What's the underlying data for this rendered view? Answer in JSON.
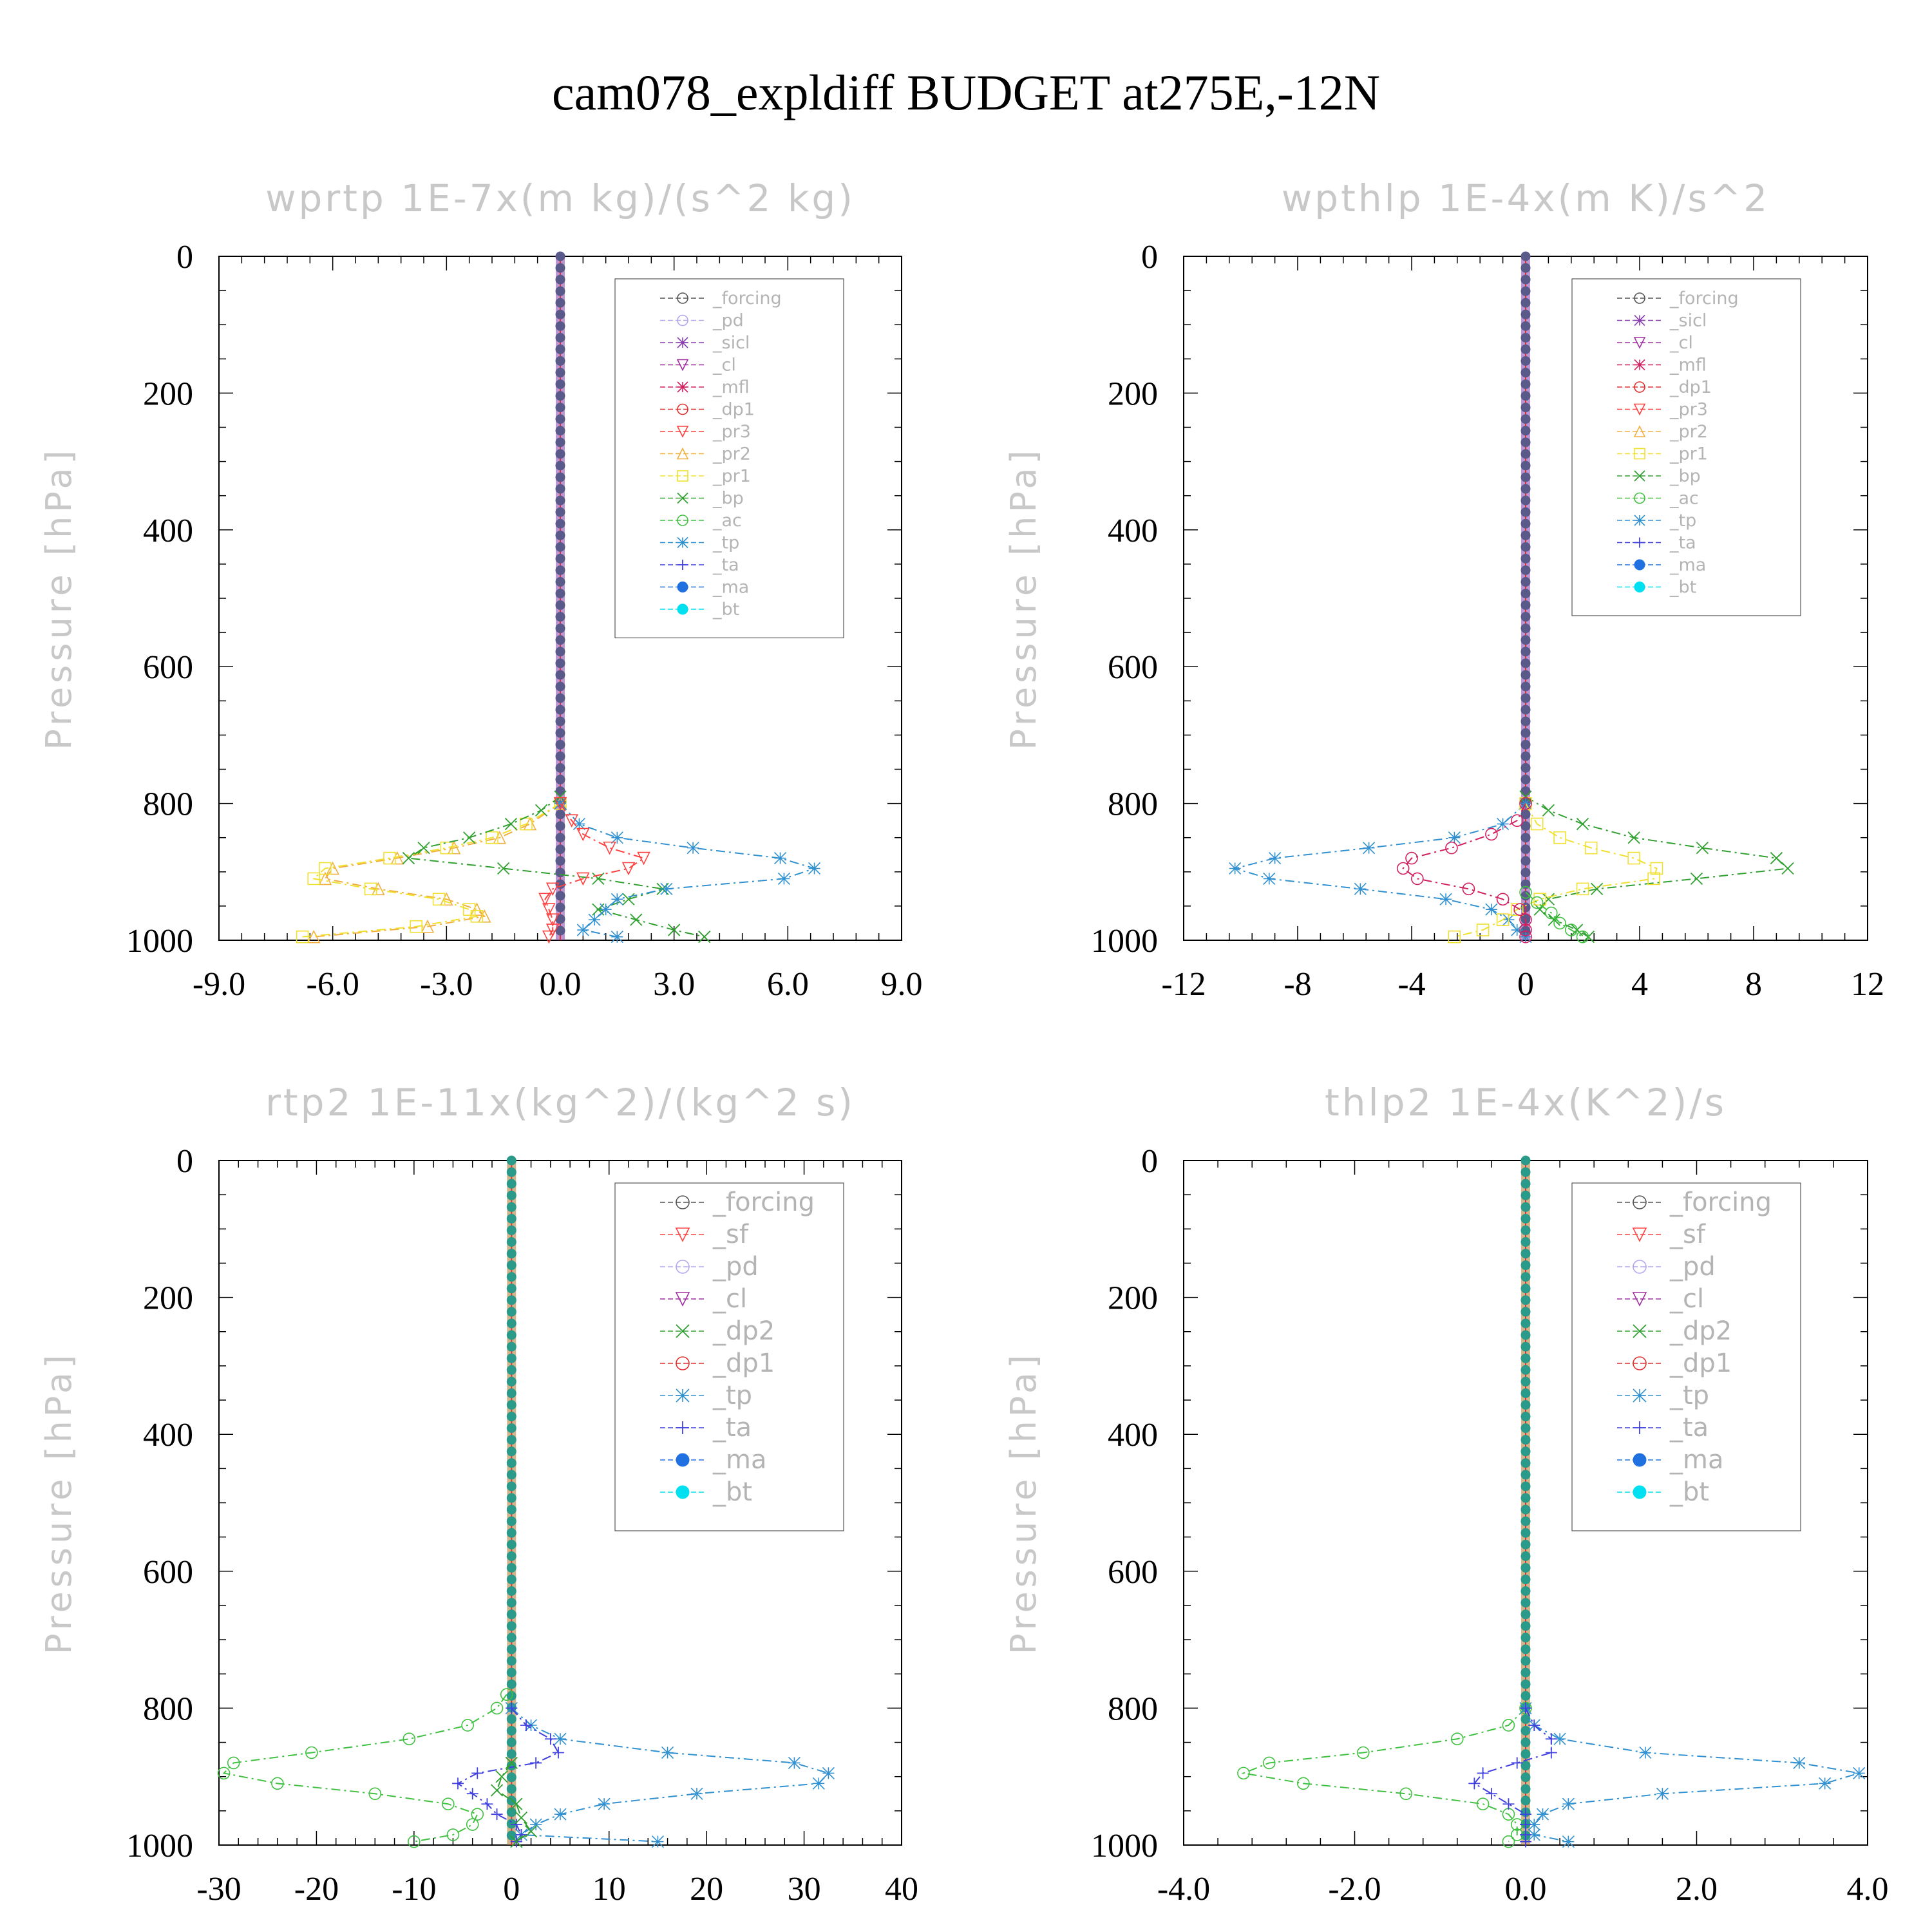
{
  "title": "cam078_expldiff  BUDGET at275E,-12N",
  "colors": {
    "forcing": "#555555",
    "pd": "#b0a8f0",
    "sicl": "#8a3fb0",
    "cl": "#a030a0",
    "mfl": "#d02060",
    "dp1": "#e03030",
    "pr3": "#ff4040",
    "pr2": "#f0b040",
    "pr1": "#f0e030",
    "bp": "#30a030",
    "ac": "#40c040",
    "tp": "#3090d0",
    "ta": "#4040e0",
    "ma": "#2070e0",
    "bt": "#00e0f0"
  },
  "chart_data": [
    {
      "type": "line",
      "title": "wprtp  1E-7x(m kg)/(s^2 kg)",
      "ylabel": "Pressure [hPa]",
      "xlim": [
        -9,
        9
      ],
      "ylim": [
        1000,
        0
      ],
      "xticks": [
        "-9.0",
        "-6.0",
        "-3.0",
        "0.0",
        "3.0",
        "6.0",
        "9.0"
      ],
      "yticks": [
        "0",
        "200",
        "400",
        "600",
        "800",
        "1000"
      ],
      "legend": [
        "_forcing",
        "_pd",
        "_sicl",
        "_cl",
        "_mfl",
        "_dp1",
        "_pr3",
        "_pr2",
        "_pr1",
        "_bp",
        "_ac",
        "_tp",
        "_ta",
        "_ma",
        "_bt"
      ],
      "series": [
        {
          "name": "_pr2",
          "color": "#f0b040",
          "marker": "triangle",
          "p": [
            800,
            830,
            850,
            865,
            880,
            895,
            910,
            925,
            940,
            955,
            965,
            980,
            995
          ],
          "v": [
            0,
            -0.8,
            -1.6,
            -2.8,
            -4.3,
            -6.0,
            -6.2,
            -4.8,
            -3.0,
            -2.2,
            -2.0,
            -3.5,
            -6.5
          ]
        },
        {
          "name": "_pr1",
          "color": "#f0e030",
          "marker": "square",
          "p": [
            800,
            830,
            850,
            865,
            880,
            895,
            910,
            925,
            940,
            955,
            965,
            980,
            995
          ],
          "v": [
            0,
            -0.9,
            -1.8,
            -3.0,
            -4.5,
            -6.2,
            -6.5,
            -5.0,
            -3.2,
            -2.4,
            -2.2,
            -3.8,
            -6.8
          ]
        },
        {
          "name": "_bp",
          "color": "#30a030",
          "marker": "x",
          "p": [
            790,
            810,
            830,
            850,
            865,
            880,
            895,
            910,
            925,
            940,
            955,
            970,
            985,
            995
          ],
          "v": [
            0,
            -0.5,
            -1.3,
            -2.4,
            -3.6,
            -4.0,
            -1.5,
            1.0,
            2.7,
            1.8,
            1.0,
            2.0,
            3.0,
            3.8
          ]
        },
        {
          "name": "_tp",
          "color": "#3090d0",
          "marker": "star",
          "p": [
            800,
            830,
            850,
            865,
            880,
            895,
            910,
            925,
            940,
            955,
            970,
            985,
            995
          ],
          "v": [
            0,
            0.5,
            1.5,
            3.5,
            5.8,
            6.7,
            5.9,
            2.8,
            1.5,
            1.2,
            0.9,
            0.6,
            1.5
          ]
        },
        {
          "name": "_pr3",
          "color": "#ff4040",
          "marker": "tri-down",
          "p": [
            800,
            825,
            845,
            865,
            880,
            895,
            910,
            925,
            940,
            955,
            970,
            985,
            995
          ],
          "v": [
            0,
            0.3,
            0.6,
            1.3,
            2.2,
            1.8,
            0.6,
            -0.2,
            -0.4,
            -0.3,
            -0.2,
            -0.2,
            -0.3
          ]
        },
        {
          "name": "_forcing",
          "color": "#555555",
          "marker": "circle",
          "p": [
            0,
            1000
          ],
          "v": [
            0,
            0
          ]
        }
      ]
    },
    {
      "type": "line",
      "title": "wpthlp  1E-4x(m K)/s^2",
      "ylabel": "Pressure [hPa]",
      "xlim": [
        -12,
        12
      ],
      "ylim": [
        1000,
        0
      ],
      "xticks": [
        "-12",
        "-8",
        "-4",
        "0",
        "4",
        "8",
        "12"
      ],
      "yticks": [
        "0",
        "200",
        "400",
        "600",
        "800",
        "1000"
      ],
      "legend": [
        "_forcing",
        "_sicl",
        "_cl",
        "_mfl",
        "_dp1",
        "_pr3",
        "_pr2",
        "_pr1",
        "_bp",
        "_ac",
        "_tp",
        "_ta",
        "_ma",
        "_bt"
      ],
      "series": [
        {
          "name": "_tp",
          "color": "#3090d0",
          "marker": "star",
          "p": [
            800,
            830,
            850,
            865,
            880,
            895,
            910,
            925,
            940,
            955,
            970,
            985,
            995
          ],
          "v": [
            0,
            -0.8,
            -2.5,
            -5.5,
            -8.8,
            -10.2,
            -9.0,
            -5.8,
            -2.8,
            -1.2,
            -0.6,
            -0.3,
            0
          ]
        },
        {
          "name": "_bp",
          "color": "#30a030",
          "marker": "x",
          "p": [
            790,
            810,
            830,
            850,
            865,
            880,
            895,
            910,
            925,
            940,
            955,
            970,
            985,
            995
          ],
          "v": [
            0,
            0.8,
            2.0,
            3.8,
            6.2,
            8.8,
            9.2,
            6.0,
            2.5,
            0.8,
            0.5,
            1.0,
            1.8,
            2.2
          ]
        },
        {
          "name": "_pr1",
          "color": "#f0e030",
          "marker": "square",
          "p": [
            800,
            830,
            850,
            865,
            880,
            895,
            910,
            925,
            940,
            955,
            970,
            985,
            995
          ],
          "v": [
            0,
            0.4,
            1.2,
            2.3,
            3.8,
            4.6,
            4.5,
            2.0,
            0.5,
            -0.3,
            -0.8,
            -1.5,
            -2.5
          ]
        },
        {
          "name": "_mfl",
          "color": "#d02060",
          "marker": "circle",
          "p": [
            800,
            825,
            845,
            865,
            880,
            895,
            910,
            925,
            940,
            955,
            970,
            985,
            995
          ],
          "v": [
            0,
            -0.3,
            -1.2,
            -2.6,
            -4.0,
            -4.3,
            -3.8,
            -2.0,
            -0.8,
            -0.2,
            0,
            0,
            0
          ]
        },
        {
          "name": "_ac",
          "color": "#40c040",
          "marker": "circle",
          "p": [
            930,
            945,
            960,
            975,
            985,
            995
          ],
          "v": [
            0,
            0.4,
            0.9,
            1.2,
            1.6,
            2.0
          ]
        },
        {
          "name": "_forcing",
          "color": "#b0a8f0",
          "marker": "circle",
          "p": [
            0,
            1000
          ],
          "v": [
            0,
            0
          ]
        }
      ]
    },
    {
      "type": "line",
      "title": "rtp2  1E-11x(kg^2)/(kg^2 s)",
      "ylabel": "Pressure [hPa]",
      "xlim": [
        -30,
        40
      ],
      "ylim": [
        1000,
        0
      ],
      "xticks": [
        "-30",
        "-20",
        "-10",
        "0",
        "10",
        "20",
        "30",
        "40"
      ],
      "yticks": [
        "0",
        "200",
        "400",
        "600",
        "800",
        "1000"
      ],
      "legend": [
        "_forcing",
        "_sf",
        "_pd",
        "_cl",
        "_dp2",
        "_dp1",
        "_tp",
        "_ta",
        "_ma",
        "_bt"
      ],
      "series": [
        {
          "name": "_dp1",
          "color": "#40c040",
          "marker": "circle",
          "p": [
            780,
            800,
            825,
            845,
            865,
            880,
            895,
            910,
            925,
            940,
            955,
            970,
            985,
            995
          ],
          "v": [
            -0.5,
            -1.5,
            -4.5,
            -10.5,
            -20.5,
            -28.5,
            -29.5,
            -24.0,
            -14.0,
            -6.5,
            -3.5,
            -4.0,
            -6.0,
            -10.0
          ]
        },
        {
          "name": "_tp",
          "color": "#3090d0",
          "marker": "star",
          "p": [
            800,
            825,
            845,
            865,
            880,
            895,
            910,
            925,
            940,
            955,
            970,
            985,
            995
          ],
          "v": [
            0,
            2.0,
            5.0,
            16.0,
            29.0,
            32.5,
            31.5,
            19.0,
            9.5,
            5.0,
            2.5,
            1.0,
            15.0
          ]
        },
        {
          "name": "_ta",
          "color": "#4040e0",
          "marker": "plus",
          "p": [
            800,
            825,
            845,
            865,
            880,
            895,
            910,
            925,
            940,
            955,
            970,
            985,
            995
          ],
          "v": [
            0,
            1.5,
            4.0,
            4.8,
            2.5,
            -3.5,
            -5.5,
            -4.0,
            -2.5,
            -1.5,
            0.5,
            1.0,
            0.5
          ]
        },
        {
          "name": "_dp2",
          "color": "#30a030",
          "marker": "x",
          "p": [
            880,
            900,
            920,
            940,
            960,
            980,
            995
          ],
          "v": [
            0,
            -1.0,
            -1.5,
            0.5,
            1.0,
            2.0,
            0.5
          ]
        },
        {
          "name": "_forcing",
          "color": "#e03030",
          "marker": "circle",
          "p": [
            0,
            1000
          ],
          "v": [
            0,
            0
          ]
        }
      ]
    },
    {
      "type": "line",
      "title": "thlp2  1E-4x(K^2)/s",
      "ylabel": "Pressure [hPa]",
      "xlim": [
        -4,
        4
      ],
      "ylim": [
        1000,
        0
      ],
      "xticks": [
        "-4.0",
        "-2.0",
        "0.0",
        "2.0",
        "4.0"
      ],
      "yticks": [
        "0",
        "200",
        "400",
        "600",
        "800",
        "1000"
      ],
      "legend": [
        "_forcing",
        "_sf",
        "_pd",
        "_cl",
        "_dp2",
        "_dp1",
        "_tp",
        "_ta",
        "_ma",
        "_bt"
      ],
      "series": [
        {
          "name": "_dp1",
          "color": "#40c040",
          "marker": "circle",
          "p": [
            800,
            825,
            845,
            865,
            880,
            895,
            910,
            925,
            940,
            955,
            970,
            985,
            995
          ],
          "v": [
            0,
            -0.2,
            -0.8,
            -1.9,
            -3.0,
            -3.3,
            -2.6,
            -1.4,
            -0.5,
            -0.2,
            -0.1,
            -0.1,
            -0.2
          ]
        },
        {
          "name": "_tp",
          "color": "#3090d0",
          "marker": "star",
          "p": [
            800,
            825,
            845,
            865,
            880,
            895,
            910,
            925,
            940,
            955,
            970,
            985,
            995
          ],
          "v": [
            0,
            0.1,
            0.4,
            1.4,
            3.2,
            3.9,
            3.5,
            1.6,
            0.5,
            0.2,
            0.1,
            0.1,
            0.5
          ]
        },
        {
          "name": "_ta",
          "color": "#4040e0",
          "marker": "plus",
          "p": [
            800,
            825,
            845,
            865,
            880,
            895,
            910,
            925,
            940,
            955,
            970,
            985,
            995
          ],
          "v": [
            0,
            0.1,
            0.3,
            0.3,
            -0.1,
            -0.5,
            -0.6,
            -0.4,
            -0.2,
            0,
            0,
            0,
            0
          ]
        },
        {
          "name": "_forcing",
          "color": "#e03030",
          "marker": "circle",
          "p": [
            0,
            1000
          ],
          "v": [
            0,
            0
          ]
        }
      ]
    }
  ]
}
